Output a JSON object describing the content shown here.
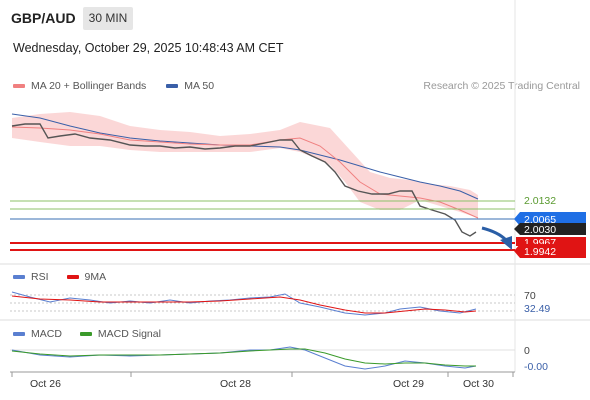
{
  "header": {
    "symbol": "GBP/AUD",
    "timeframe": "30 MIN",
    "datetime": "Wednesday, October 29, 2025 10:48:43 AM CET"
  },
  "legend": {
    "ma20_label": "MA 20 + Bollinger Bands",
    "ma50_label": "MA 50",
    "credit": "Research © 2025 Trading Central",
    "rsi_label": "RSI",
    "rsi_ma_label": "9MA",
    "macd_label": "MACD",
    "macd_signal_label": "MACD Signal"
  },
  "colors": {
    "ma20": "#f08080",
    "ma50": "#3a5fa8",
    "bollinger_fill": "#f9c9c9",
    "green_level": "#8ec26a",
    "blue_level": "#3a6fb3",
    "red_level": "#e01414",
    "dark_level": "#222222",
    "rsi": "#5a7fd0",
    "rsi_ma": "#e01414",
    "macd": "#5a7fd0",
    "macd_signal": "#3a9a2a"
  },
  "price_tags": {
    "green": "2.0132",
    "green_hidden": "2.0101",
    "blue": "2.0065",
    "dark": "2.0030",
    "red_top": "1.9967",
    "red_bottom": "1.9942"
  },
  "rsi_tags": {
    "level_70": "70",
    "current": "32.49"
  },
  "macd_tags": {
    "zero": "0",
    "current": "-0.00"
  },
  "x_axis": [
    "Oct 26",
    "Oct 28",
    "Oct 29",
    "Oct 30"
  ],
  "chart_data": {
    "type": "line",
    "title": "GBP/AUD 30 MIN",
    "x_labels": [
      "Oct 26",
      "Oct 28",
      "Oct 29",
      "Oct 30"
    ],
    "price_approx": [
      2.054,
      2.0545,
      2.053,
      2.052,
      2.0515,
      2.0505,
      2.049,
      2.0485,
      2.048,
      2.0485,
      2.047,
      2.0465,
      2.046,
      2.0462,
      2.047,
      2.049,
      2.0475,
      2.044,
      2.038,
      2.027,
      2.02,
      2.018,
      2.019,
      2.0205,
      2.014,
      2.009,
      2.001,
      2.003
    ],
    "ma50_approx": [
      2.056,
      2.0548,
      2.0536,
      2.0522,
      2.051,
      2.0499,
      2.0489,
      2.048,
      2.0472,
      2.0466,
      2.046,
      2.0456,
      2.0452,
      2.0449,
      2.0446,
      2.044,
      2.0432,
      2.042,
      2.0404,
      2.0385,
      2.0365,
      2.0345,
      2.0327,
      2.0305,
      2.028,
      2.0252,
      2.0225,
      2.021
    ],
    "levels": {
      "resistance_green_1": 2.0132,
      "resistance_green_2": 2.0101,
      "pivot": 2.0065,
      "last": 2.003,
      "support_1": 1.9967,
      "support_2": 1.9942
    },
    "rsi": {
      "overbought": 70,
      "current": 32.49
    },
    "macd": {
      "current": -0.0
    }
  }
}
